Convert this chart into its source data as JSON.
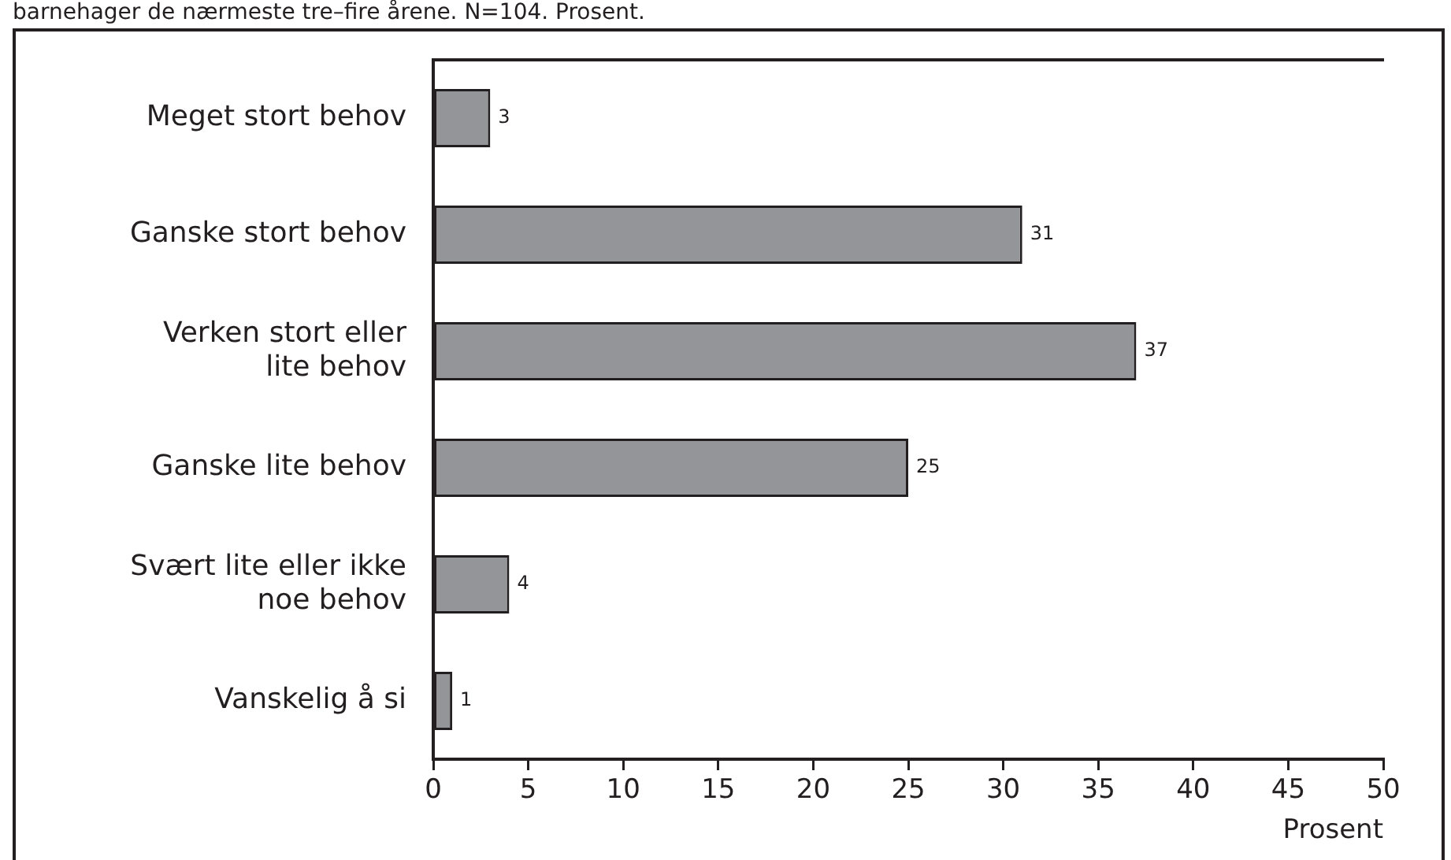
{
  "chart_data": {
    "type": "bar",
    "orientation": "horizontal",
    "title": "barnehager de nærmeste tre–fire årene. N=104. Prosent.",
    "xlabel": "Prosent",
    "categories": [
      "Meget stort behov",
      "Ganske stort behov",
      "Verken stort eller lite behov",
      "Ganske lite behov",
      "Svært lite eller ikke noe behov",
      "Vanskelig å si"
    ],
    "values": [
      3,
      31,
      37,
      25,
      4,
      1
    ],
    "color": "#939598",
    "xlim": [
      0,
      50
    ],
    "xticks": [
      0,
      5,
      10,
      15,
      20,
      25,
      30,
      35,
      40,
      45,
      50
    ],
    "grid": false,
    "data_labels": true
  }
}
